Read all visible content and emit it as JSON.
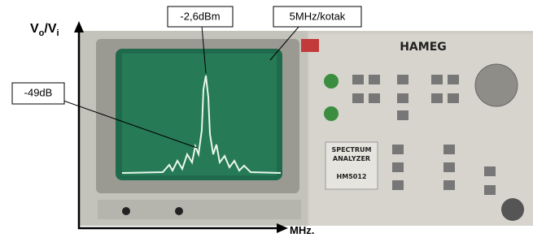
{
  "y_axis_label": [
    "V",
    "o",
    "/V",
    "i"
  ],
  "x_axis_label": "MHz.",
  "annotations": {
    "peak": "-2,6dBm",
    "scale": "5MHz/kotak",
    "sidelobe": "-49dB"
  },
  "device": {
    "brand": "HAMEG",
    "panel_title": [
      "SPECTRUM",
      "ANALYZER"
    ],
    "model": "HM5012"
  }
}
